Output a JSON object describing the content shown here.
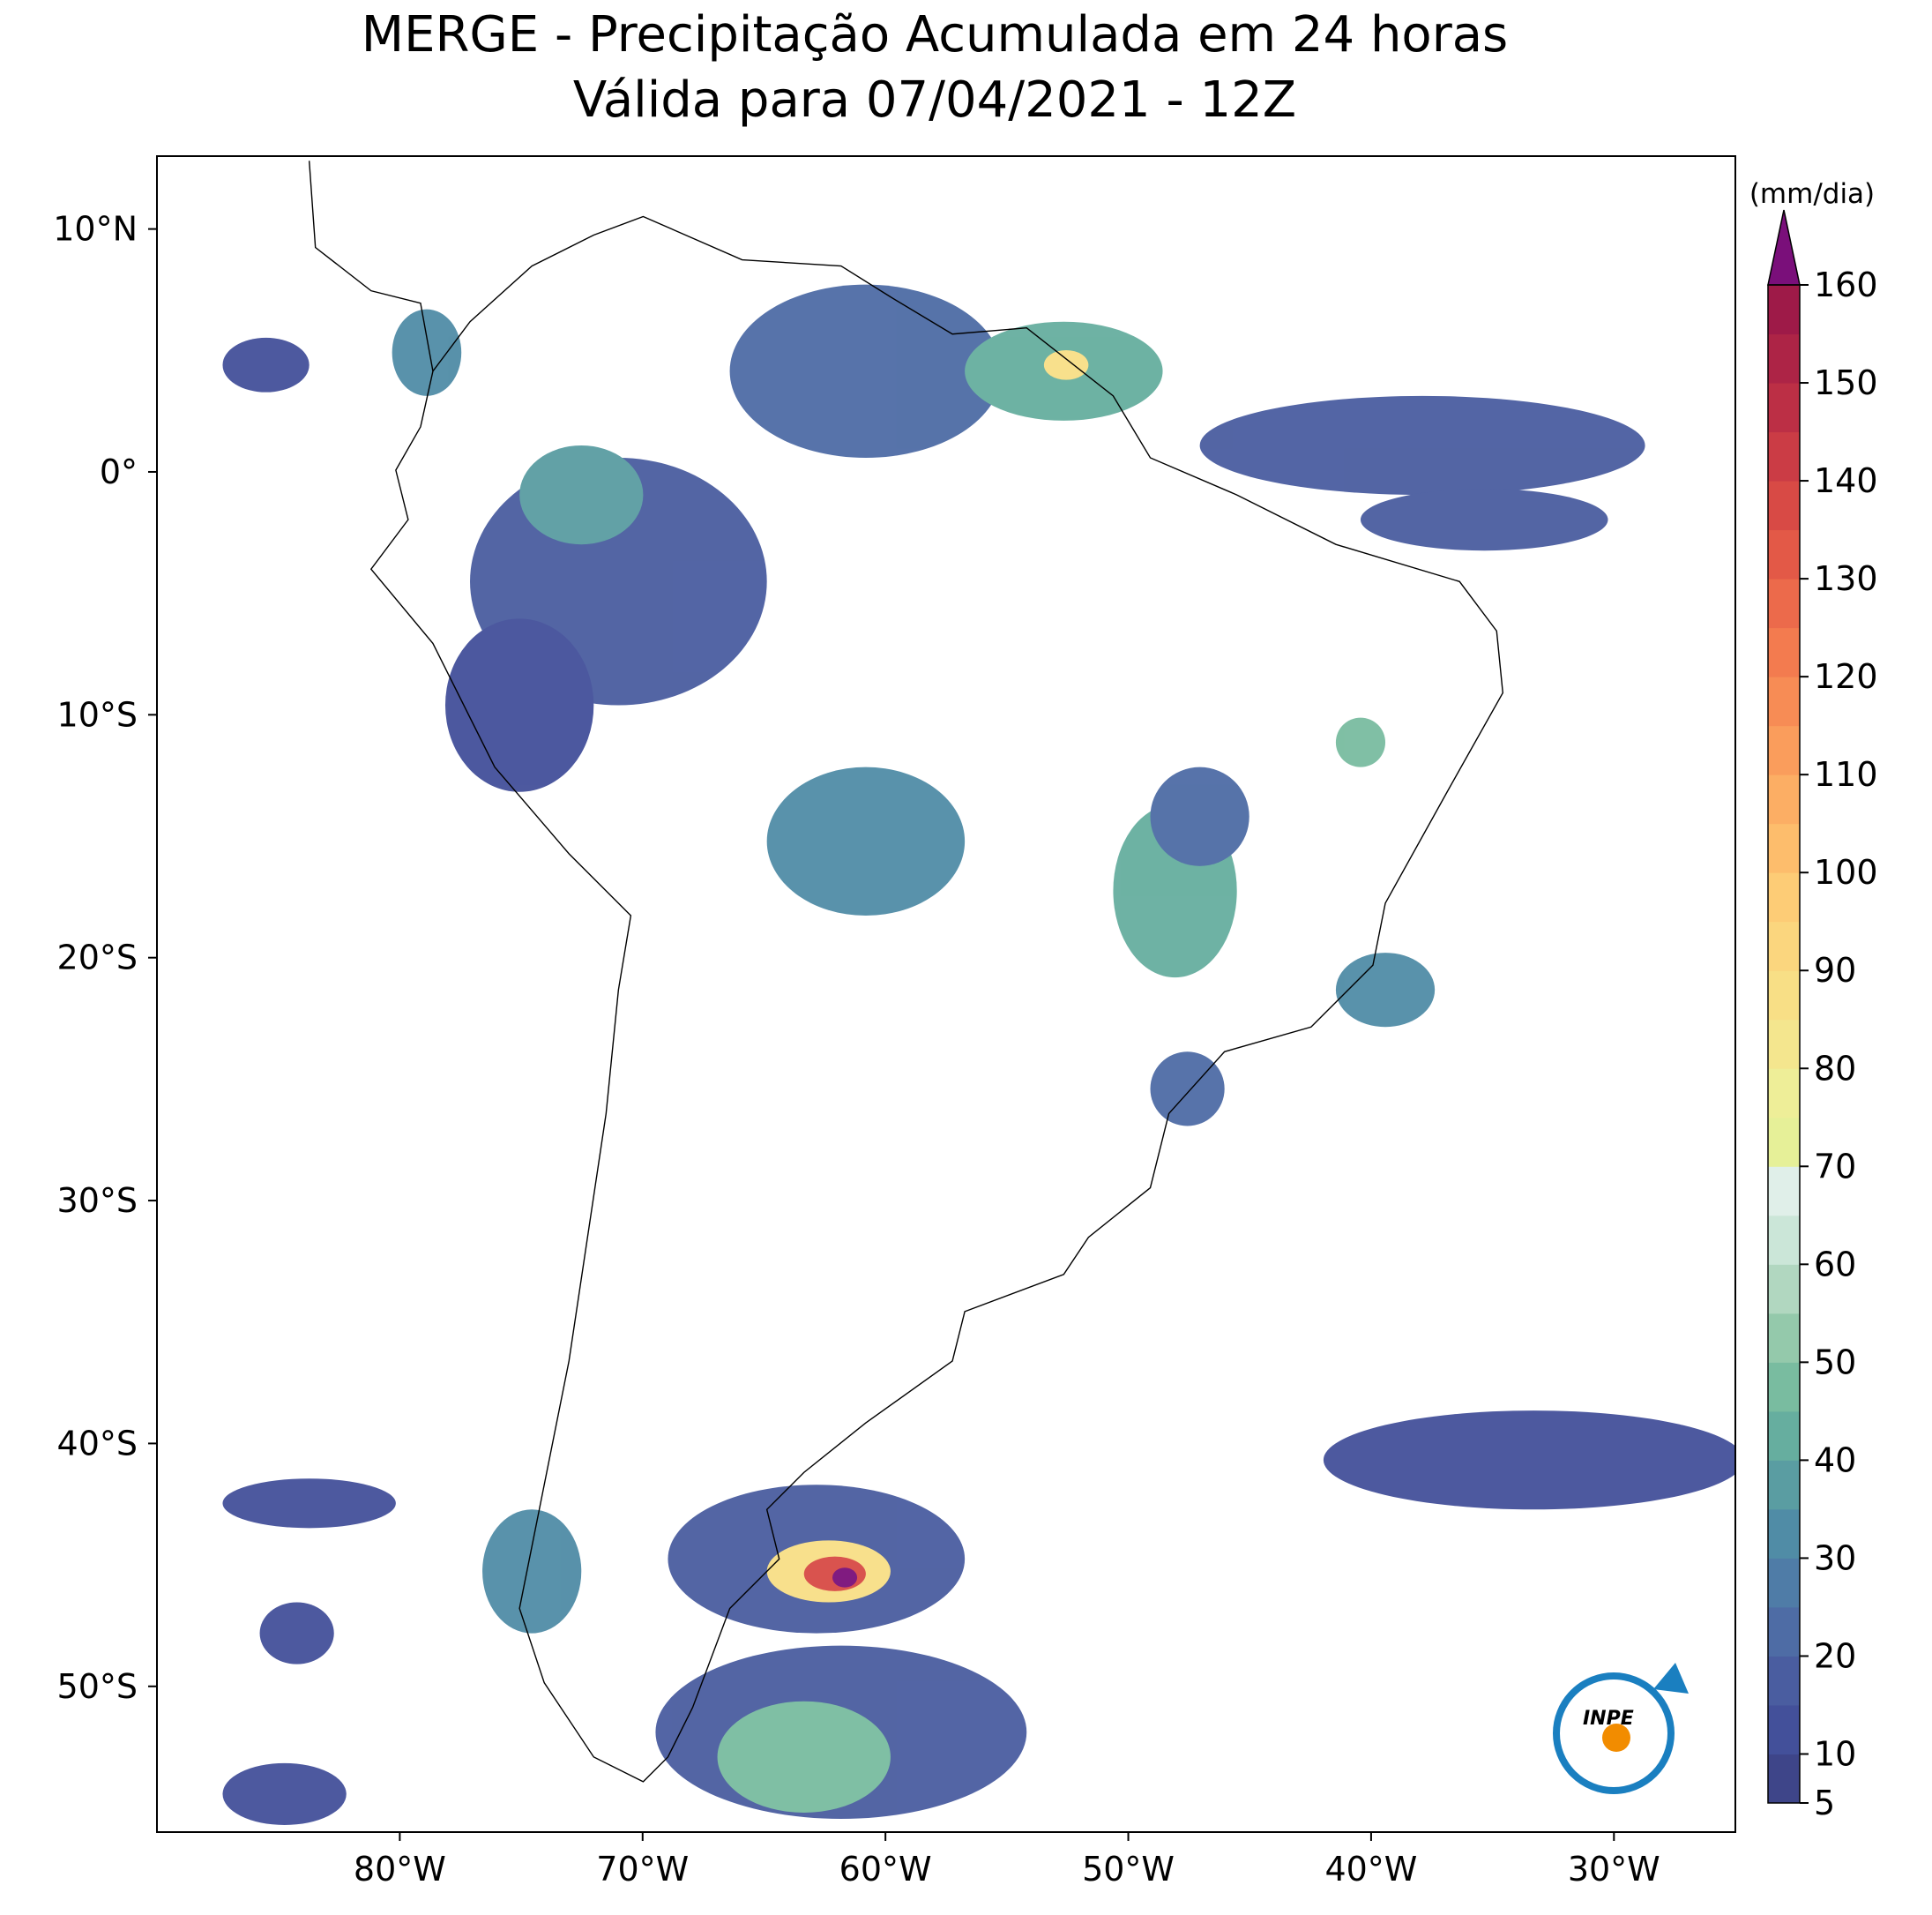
{
  "chart_data": {
    "type": "map",
    "title": "MERGE - Precipitação Acumulada em 24 horas",
    "subtitle": "Válida para 07/04/2021 - 12Z",
    "xlim": [
      -90,
      -25
    ],
    "ylim": [
      -56,
      13
    ],
    "xticks": [
      {
        "value": -80,
        "label": "80°W"
      },
      {
        "value": -70,
        "label": "70°W"
      },
      {
        "value": -60,
        "label": "60°W"
      },
      {
        "value": -50,
        "label": "50°W"
      },
      {
        "value": -40,
        "label": "40°W"
      },
      {
        "value": -30,
        "label": "30°W"
      }
    ],
    "yticks": [
      {
        "value": 10,
        "label": "10°N"
      },
      {
        "value": 0,
        "label": "0°"
      },
      {
        "value": -10,
        "label": "10°S"
      },
      {
        "value": -20,
        "label": "20°S"
      },
      {
        "value": -30,
        "label": "30°S"
      },
      {
        "value": -40,
        "label": "40°S"
      },
      {
        "value": -50,
        "label": "50°S"
      }
    ],
    "logo_text": "INPE",
    "colorbar": {
      "label": "(mm/dia)",
      "levels": [
        5,
        10,
        15,
        20,
        25,
        30,
        35,
        40,
        45,
        50,
        55,
        60,
        65,
        70,
        75,
        80,
        85,
        90,
        95,
        100,
        105,
        110,
        115,
        120,
        125,
        130,
        135,
        140,
        145,
        150,
        155,
        160
      ],
      "ticks": [
        5,
        10,
        20,
        30,
        40,
        50,
        60,
        70,
        80,
        90,
        100,
        110,
        120,
        130,
        140,
        150,
        160
      ],
      "colors": [
        "#3e4589",
        "#43509a",
        "#4a5da0",
        "#4e6ca5",
        "#4f7ca7",
        "#508ca6",
        "#5a9da2",
        "#66ae9f",
        "#79bca0",
        "#94c9ab",
        "#b1d7c0",
        "#cbe6d8",
        "#e0efe9",
        "#e6f098",
        "#eeee98",
        "#f4e68e",
        "#f8df86",
        "#fbd67e",
        "#fdcc76",
        "#fdbd6c",
        "#fcae64",
        "#fa9d5c",
        "#f78c55",
        "#f37b4f",
        "#ec6a4b",
        "#e35947",
        "#d84a45",
        "#cb3c45",
        "#bc2f45",
        "#ad2446",
        "#9e1a48"
      ],
      "extend_color": "#7a0f7a"
    }
  }
}
